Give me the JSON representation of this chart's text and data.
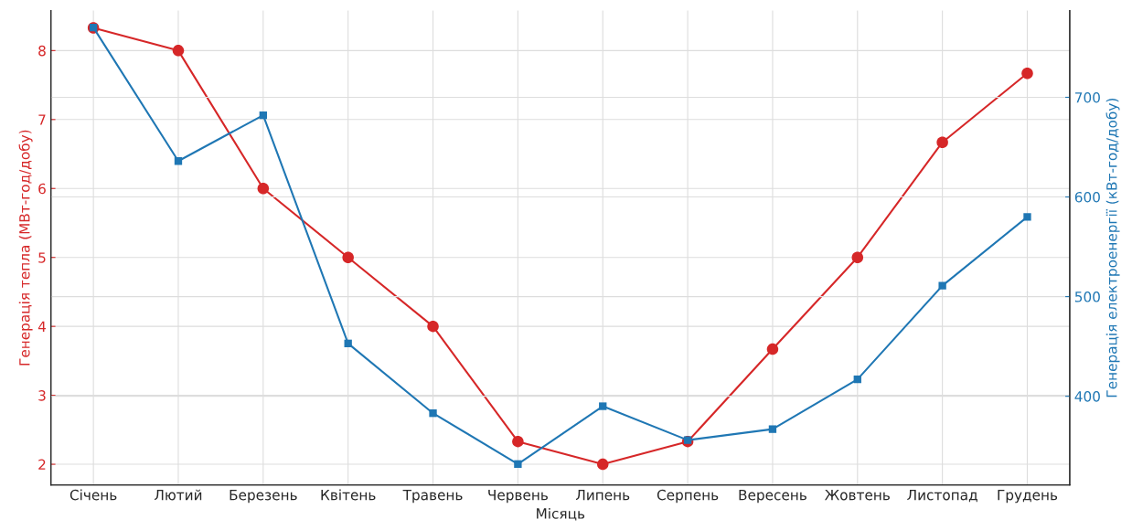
{
  "chart_data": {
    "type": "line",
    "xlabel": "Місяць",
    "ylabel": "Генерація тепла (МВт-год/добу)",
    "y2label": "Генерація електроенергії (кВт-год/добу)",
    "categories": [
      "Січень",
      "Лютий",
      "Березень",
      "Квітень",
      "Травень",
      "Червень",
      "Липень",
      "Серпень",
      "Вересень",
      "Жовтень",
      "Листопад",
      "Грудень"
    ],
    "series": [
      {
        "color": "#d62728",
        "marker": "circle",
        "values": [
          8.33,
          8.0,
          6.0,
          5.0,
          4.0,
          2.33,
          2.0,
          2.33,
          3.67,
          5.0,
          6.67,
          7.67
        ]
      },
      {
        "color": "#1f77b4",
        "marker": "square",
        "axis": "y2",
        "values": [
          770,
          636,
          682,
          453,
          383,
          332,
          390,
          356,
          367,
          417,
          511,
          580
        ]
      }
    ],
    "ylim": [
      1.7,
      8.58
    ],
    "yticks": [
      2,
      3,
      4,
      5,
      6,
      7,
      8
    ],
    "y2lim": [
      311,
      787
    ],
    "y2ticks": [
      400,
      500,
      600,
      700
    ],
    "grid": true,
    "line_style": "solid"
  }
}
